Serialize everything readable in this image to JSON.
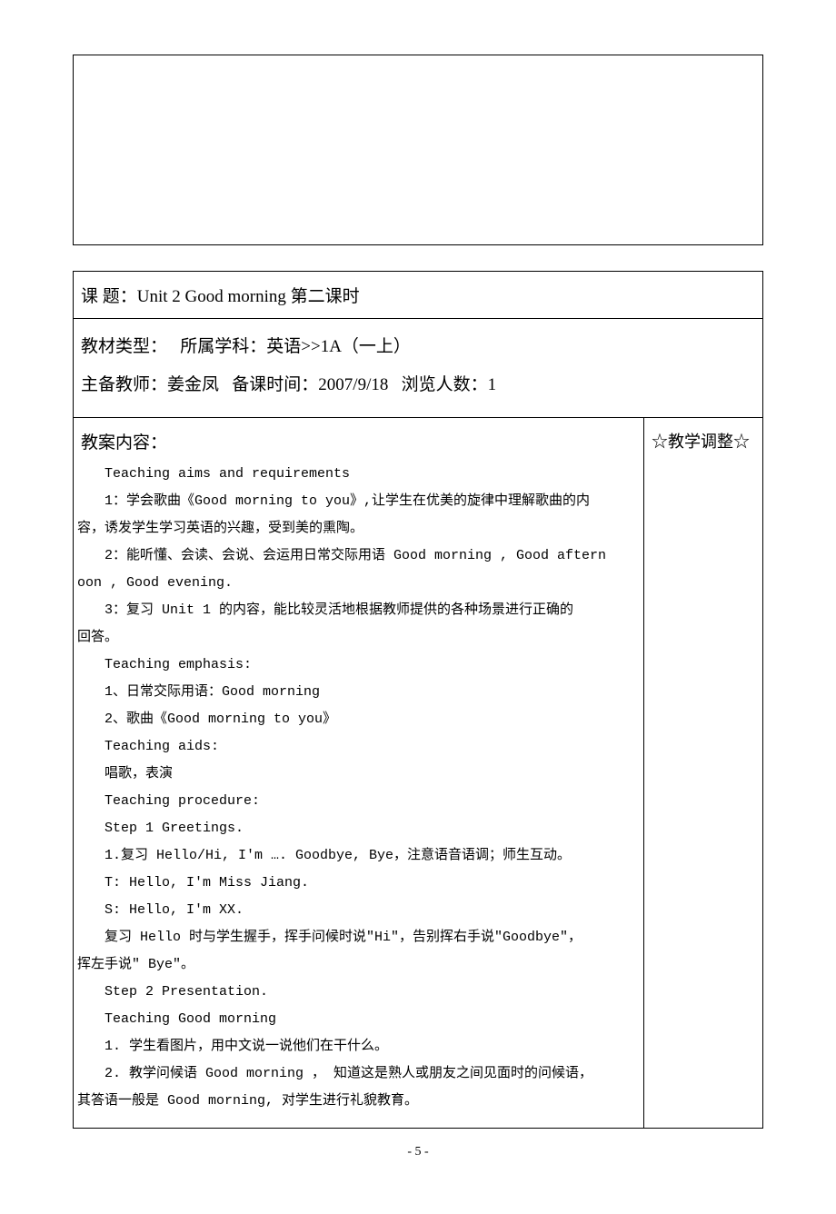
{
  "title_label": "课 题：",
  "title_value": "Unit 2 Good morning 第二课时",
  "meta": {
    "material_type_label": "教材类型：",
    "subject_label": "所属学科：",
    "subject_value": "英语>>1A（一上）",
    "teacher_label": "主备教师：",
    "teacher_value": "姜金凤",
    "prep_time_label": "备课时间：",
    "prep_time_value": "2007/9/18",
    "views_label": "浏览人数：",
    "views_value": "1"
  },
  "left_heading": "教案内容：",
  "right_heading": "☆教学调整☆",
  "lines": [
    {
      "cls": "indent",
      "text": "Teaching aims and requirements"
    },
    {
      "cls": "indent",
      "text": "1：学会歌曲《Good morning to you》,让学生在优美的旋律中理解歌曲的内"
    },
    {
      "cls": "no-indent",
      "text": "容，诱发学生学习英语的兴趣，受到美的熏陶。"
    },
    {
      "cls": "indent",
      "text": "2：能听懂、会读、会说、会运用日常交际用语 Good morning , Good aftern"
    },
    {
      "cls": "no-indent",
      "text": "oon , Good evening."
    },
    {
      "cls": "indent",
      "text": "3：复习 Unit  1 的内容，能比较灵活地根据教师提供的各种场景进行正确的"
    },
    {
      "cls": "no-indent",
      "text": "回答。"
    },
    {
      "cls": "indent",
      "text": "Teaching emphasis:"
    },
    {
      "cls": "indent",
      "text": "1、日常交际用语：Good morning"
    },
    {
      "cls": "indent",
      "text": "2、歌曲《Good morning to you》"
    },
    {
      "cls": "indent",
      "text": "Teaching aids:"
    },
    {
      "cls": "indent",
      "text": "唱歌，表演"
    },
    {
      "cls": "indent",
      "text": "Teaching procedure:"
    },
    {
      "cls": "indent",
      "text": "Step 1  Greetings."
    },
    {
      "cls": "indent",
      "text": "1.复习 Hello/Hi, I'm …. Goodbye, Bye，注意语音语调；师生互动。"
    },
    {
      "cls": "indent",
      "text": "T: Hello, I'm Miss Jiang."
    },
    {
      "cls": "indent",
      "text": "S: Hello, I'm XX."
    },
    {
      "cls": "indent",
      "text": "复习 Hello 时与学生握手，挥手问候时说\"Hi\"，告别挥右手说\"Goodbye\"，"
    },
    {
      "cls": "no-indent",
      "text": "挥左手说\" Bye\"。"
    },
    {
      "cls": "indent",
      "text": "Step 2  Presentation."
    },
    {
      "cls": "indent",
      "text": "Teaching Good morning"
    },
    {
      "cls": "indent",
      "text": "1. 学生看图片，用中文说一说他们在干什么。"
    },
    {
      "cls": "indent",
      "text": "2. 教学问候语 Good morning ， 知道这是熟人或朋友之间见面时的问候语，"
    },
    {
      "cls": "no-indent",
      "text": "其答语一般是 Good morning, 对学生进行礼貌教育。"
    }
  ],
  "page_number": "- 5 -"
}
